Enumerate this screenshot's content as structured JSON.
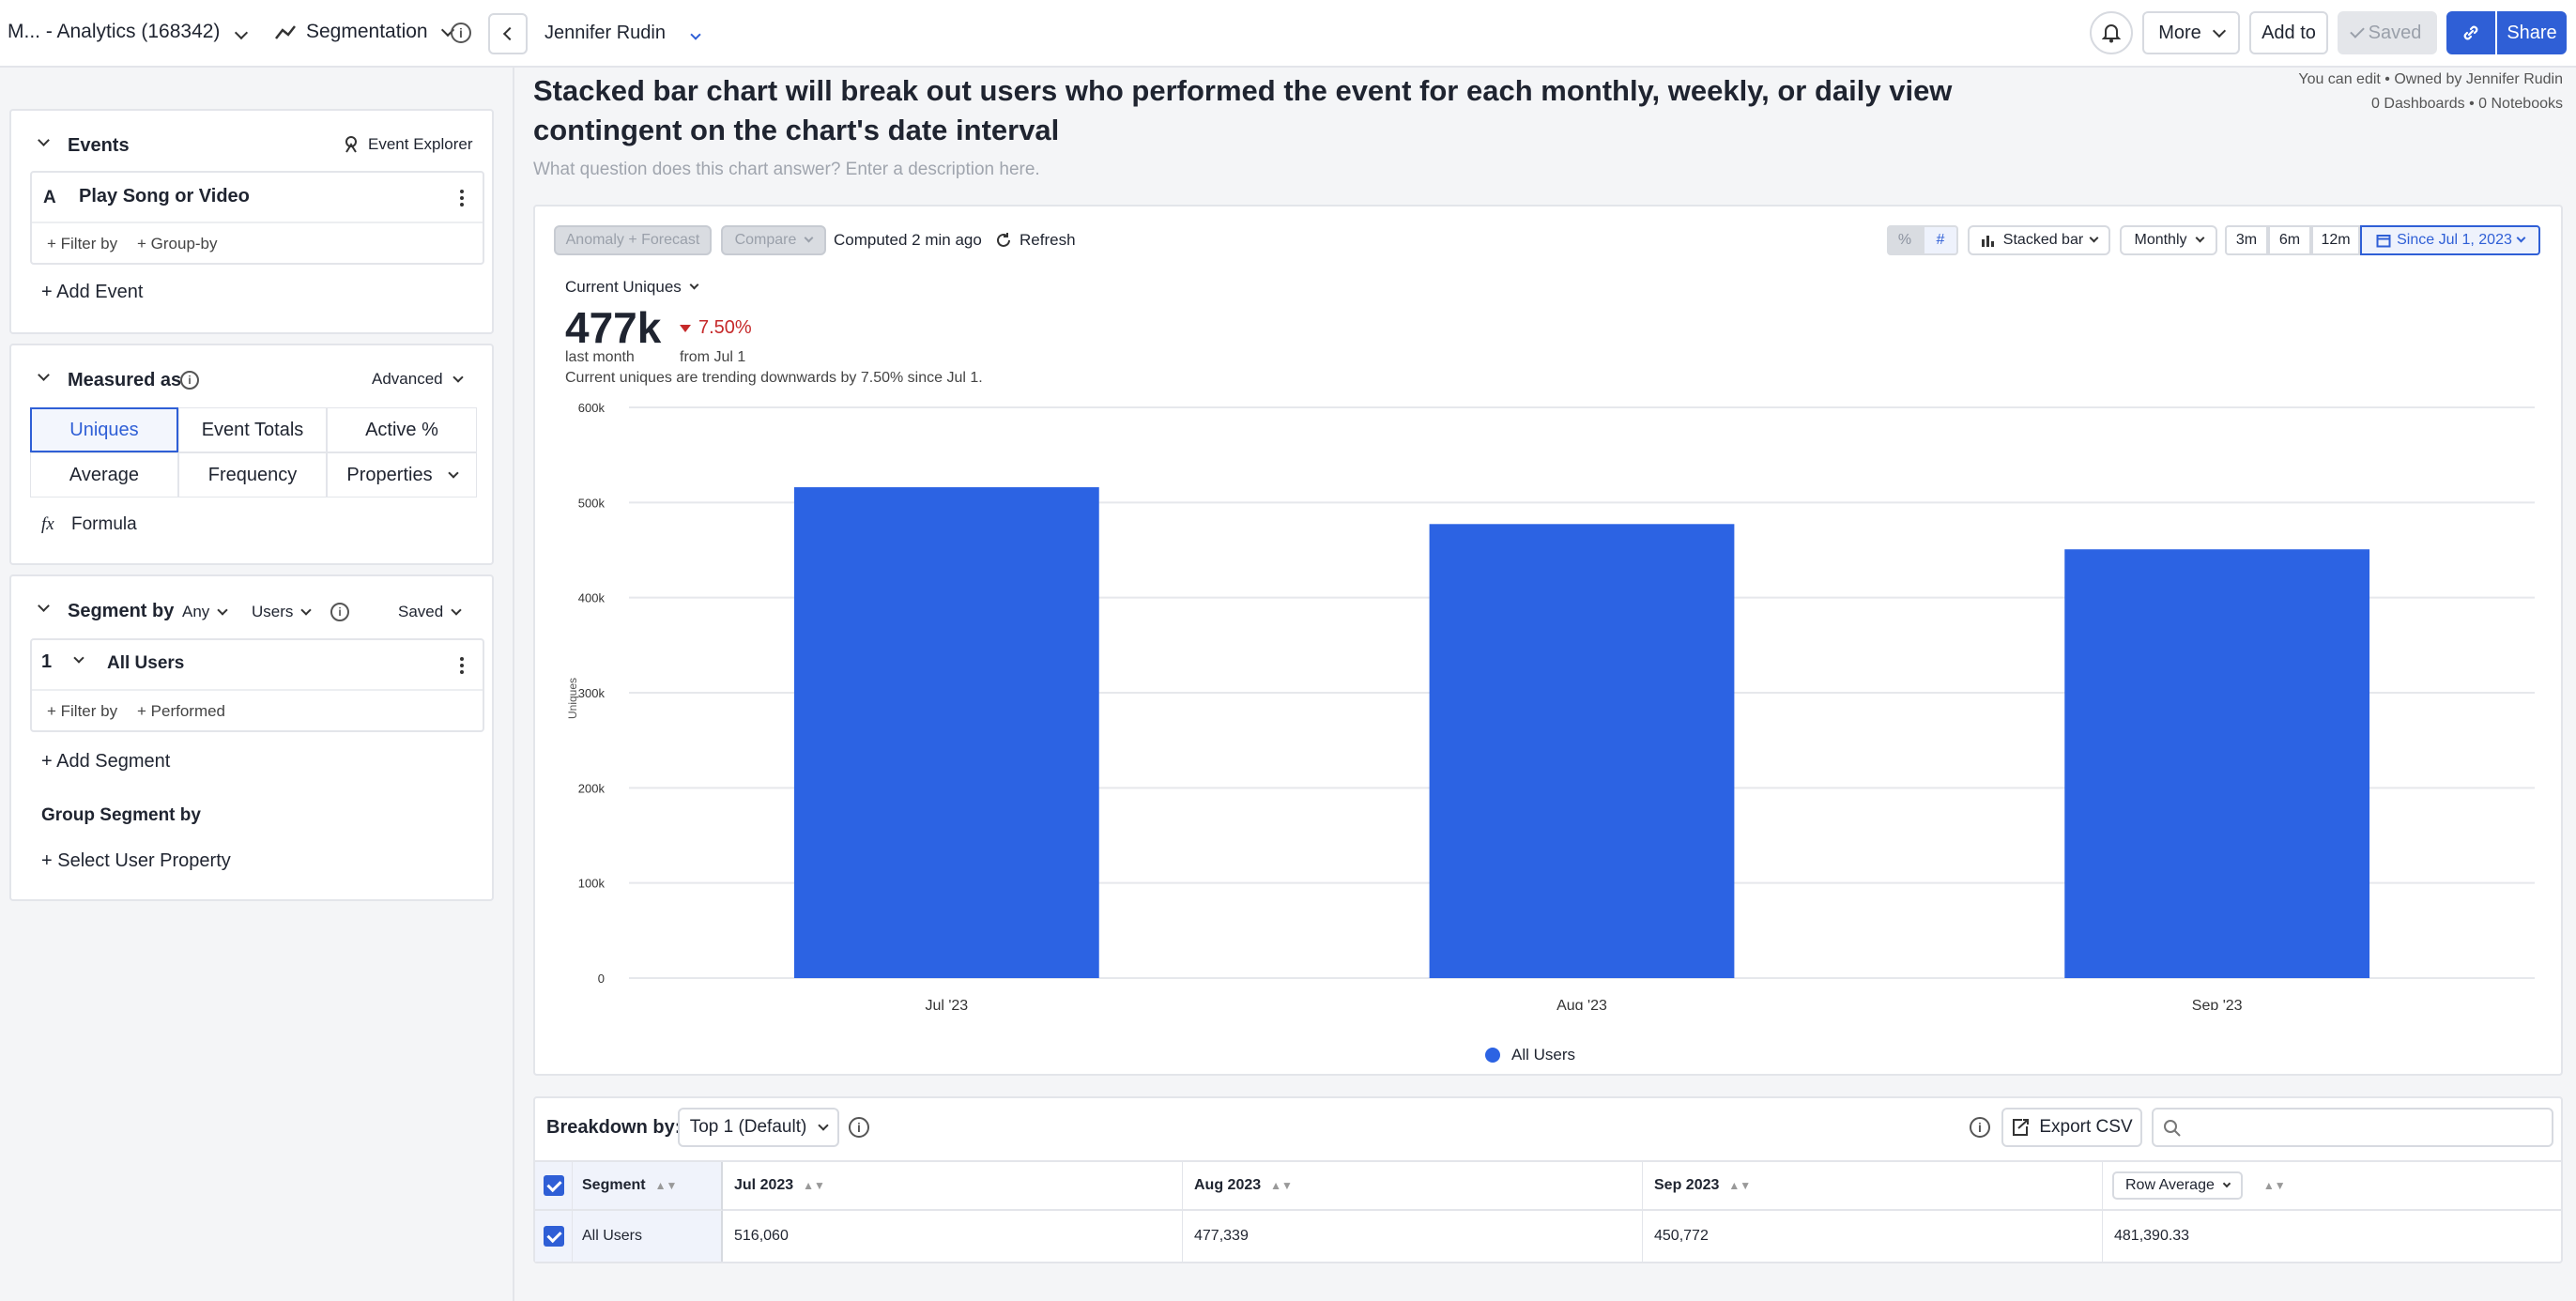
{
  "topbar": {
    "project": "M...  - Analytics (168342)",
    "chart_type": "Segmentation",
    "owner_name": "Jennifer Rudin",
    "more_label": "More",
    "add_to_label": "Add to",
    "saved_label": "Saved",
    "share_label": "Share"
  },
  "header": {
    "title_line1": "Stacked bar chart will break out users who performed the event for each monthly, weekly, or daily view",
    "title_line2": "contingent on the chart's date interval",
    "description_placeholder": "What question does this chart answer? Enter a description here.",
    "permissions": "You can edit • Owned by Jennifer Rudin",
    "counts": "0 Dashboards • 0 Notebooks"
  },
  "events": {
    "title": "Events",
    "explorer_label": "Event Explorer",
    "event_letter": "A",
    "event_name": "Play Song or Video",
    "filter_by": "+ Filter by",
    "group_by": "+ Group-by",
    "add_event": "+ Add Event"
  },
  "measured": {
    "title": "Measured as",
    "advanced": "Advanced",
    "options": [
      "Uniques",
      "Event Totals",
      "Active %",
      "Average",
      "Frequency",
      "Properties"
    ],
    "formula_icon": "fx",
    "formula": "Formula"
  },
  "segment": {
    "title": "Segment by",
    "any": "Any",
    "users": "Users",
    "saved": "Saved",
    "number": "1",
    "name": "All Users",
    "filter_by": "+ Filter by",
    "performed": "+ Performed",
    "add_segment": "+ Add Segment",
    "group_title": "Group Segment by",
    "select_property": "+ Select User Property"
  },
  "controls": {
    "anomaly": "Anomaly + Forecast",
    "compare": "Compare",
    "computed": "Computed 2 min ago",
    "refresh": "Refresh",
    "percent": "%",
    "hash": "#",
    "chart_kind": "Stacked bar",
    "interval": "Monthly",
    "ranges": [
      "3m",
      "6m",
      "12m"
    ],
    "since": "Since Jul 1, 2023"
  },
  "summary": {
    "metric_label": "Current Uniques",
    "value": "477k",
    "value_caption": "last month",
    "change": "7.50%",
    "change_caption": "from Jul 1",
    "trend_text": "Current uniques are trending downwards by 7.50% since Jul 1."
  },
  "chart_data": {
    "type": "bar",
    "categories": [
      "Jul '23",
      "Aug '23",
      "Sep '23"
    ],
    "series": [
      {
        "name": "All Users",
        "values": [
          516060,
          477339,
          450772
        ],
        "color": "#2c63e3"
      }
    ],
    "ylabel": "Uniques",
    "ylim": [
      0,
      600000
    ],
    "yticks": [
      0,
      100000,
      200000,
      300000,
      400000,
      500000,
      600000
    ],
    "ytick_labels": [
      "0",
      "100k",
      "200k",
      "300k",
      "400k",
      "500k",
      "600k"
    ],
    "grid": true,
    "legend": "bottom-center"
  },
  "breakdown": {
    "label": "Breakdown by:",
    "selection": "Top 1 (Default)",
    "export": "Export CSV",
    "search_placeholder": "",
    "headers": [
      "Segment",
      "Jul 2023",
      "Aug 2023",
      "Sep 2023",
      "Row Average"
    ],
    "rows": [
      [
        "All Users",
        "516,060",
        "477,339",
        "450,772",
        "481,390.33"
      ]
    ]
  },
  "colors": {
    "accent": "#2f5fd6",
    "bar": "#2c63e3",
    "decline": "#c6292a"
  }
}
